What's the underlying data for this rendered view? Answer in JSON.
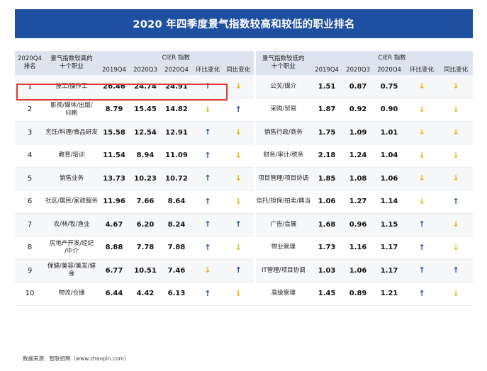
{
  "title": "2020 年四季度景气指数较高和较低的职业排名",
  "header": {
    "rank_label_1": "2020Q4",
    "rank_label_2": "排名",
    "high_label_1": "景气指数较高的",
    "high_label_2": "十个职业",
    "cier_label": "CIER 指数",
    "q_2019": "2019Q4",
    "q_2020q3": "2020Q3",
    "q_2020q4": "2020Q4",
    "qoq": "环比变化",
    "yoy": "同比变化",
    "low_label_1": "景气指数较低的",
    "low_label_2": "十个职业"
  },
  "rows": [
    {
      "rank": "1",
      "high": {
        "name_1": "技工/操作工",
        "name_2": "",
        "v2019": "26.46",
        "v20q3": "24.74",
        "v20q4": "24.91",
        "qoq": "↑",
        "yoy": "↓"
      },
      "low": {
        "name_1": "公关/媒介",
        "name_2": "",
        "v2019": "1.51",
        "v20q3": "0.87",
        "v20q4": "0.75",
        "qoq": "↓",
        "yoy": "↓"
      }
    },
    {
      "rank": "2",
      "high": {
        "name_1": "影视/媒体/出版/",
        "name_2": "印刷",
        "v2019": "8.79",
        "v20q3": "15.45",
        "v20q4": "14.82",
        "qoq": "↓",
        "yoy": "↑"
      },
      "low": {
        "name_1": "采购/贸易",
        "name_2": "",
        "v2019": "1.87",
        "v20q3": "0.92",
        "v20q4": "0.90",
        "qoq": "↓",
        "yoy": "↓"
      }
    },
    {
      "rank": "3",
      "high": {
        "name_1": "烹饪/料理/食品研发",
        "name_2": "",
        "v2019": "15.58",
        "v20q3": "12.54",
        "v20q4": "12.91",
        "qoq": "↑",
        "yoy": "↓"
      },
      "low": {
        "name_1": "销售行政/商务",
        "name_2": "",
        "v2019": "1.75",
        "v20q3": "1.09",
        "v20q4": "1.01",
        "qoq": "↓",
        "yoy": "↓"
      }
    },
    {
      "rank": "4",
      "high": {
        "name_1": "教育/培训",
        "name_2": "",
        "v2019": "11.54",
        "v20q3": "8.94",
        "v20q4": "11.09",
        "qoq": "↑",
        "yoy": "↓"
      },
      "low": {
        "name_1": "财务/审计/税务",
        "name_2": "",
        "v2019": "2.18",
        "v20q3": "1.24",
        "v20q4": "1.04",
        "qoq": "↓",
        "yoy": "↓"
      }
    },
    {
      "rank": "5",
      "high": {
        "name_1": "销售业务",
        "name_2": "",
        "v2019": "13.73",
        "v20q3": "10.23",
        "v20q4": "10.72",
        "qoq": "↑",
        "yoy": "↓"
      },
      "low": {
        "name_1": "项目管理/项目协调",
        "name_2": "",
        "v2019": "1.85",
        "v20q3": "1.08",
        "v20q4": "1.06",
        "qoq": "↓",
        "yoy": "↓"
      }
    },
    {
      "rank": "6",
      "high": {
        "name_1": "社区/居民/家政服务",
        "name_2": "",
        "v2019": "11.96",
        "v20q3": "7.66",
        "v20q4": "8.64",
        "qoq": "↑",
        "yoy": "↓"
      },
      "low": {
        "name_1": "信托/担保/拍卖/典当",
        "name_2": "",
        "v2019": "1.06",
        "v20q3": "1.27",
        "v20q4": "1.14",
        "qoq": "↓",
        "yoy": "↑"
      }
    },
    {
      "rank": "7",
      "high": {
        "name_1": "农/林/牧/渔业",
        "name_2": "",
        "v2019": "4.67",
        "v20q3": "6.20",
        "v20q4": "8.24",
        "qoq": "↑",
        "yoy": "↑"
      },
      "low": {
        "name_1": "广告/会展",
        "name_2": "",
        "v2019": "1.68",
        "v20q3": "0.96",
        "v20q4": "1.15",
        "qoq": "↑",
        "yoy": "↓"
      }
    },
    {
      "rank": "8",
      "high": {
        "name_1": "房地产开发/经纪",
        "name_2": "/中介",
        "v2019": "8.88",
        "v20q3": "7.78",
        "v20q4": "7.88",
        "qoq": "↑",
        "yoy": "↓"
      },
      "low": {
        "name_1": "物业管理",
        "name_2": "",
        "v2019": "1.73",
        "v20q3": "1.16",
        "v20q4": "1.17",
        "qoq": "↑",
        "yoy": "↓"
      }
    },
    {
      "rank": "9",
      "high": {
        "name_1": "保健/美容/美发/健身",
        "name_2": "",
        "v2019": "6.77",
        "v20q3": "10.51",
        "v20q4": "7.46",
        "qoq": "↓",
        "yoy": "↑"
      },
      "low": {
        "name_1": "IT管理/项目协调",
        "name_2": "",
        "v2019": "1.03",
        "v20q3": "1.06",
        "v20q4": "1.17",
        "qoq": "↑",
        "yoy": "↑"
      }
    },
    {
      "rank": "10",
      "high": {
        "name_1": "物流/仓储",
        "name_2": "",
        "v2019": "6.44",
        "v20q3": "4.42",
        "v20q4": "6.13",
        "qoq": "↑",
        "yoy": "↓"
      },
      "low": {
        "name_1": "高级管理",
        "name_2": "",
        "v2019": "1.45",
        "v20q3": "0.89",
        "v20q4": "1.21",
        "qoq": "↑",
        "yoy": "↓"
      }
    }
  ],
  "source": "数据来源：智联招聘（www.zhaopin.com）",
  "colors": {
    "banner": "#1f4fa0",
    "arrow_up": "#1f4fa0",
    "arrow_down": "#e8b400",
    "highlight": "#e03a35"
  }
}
